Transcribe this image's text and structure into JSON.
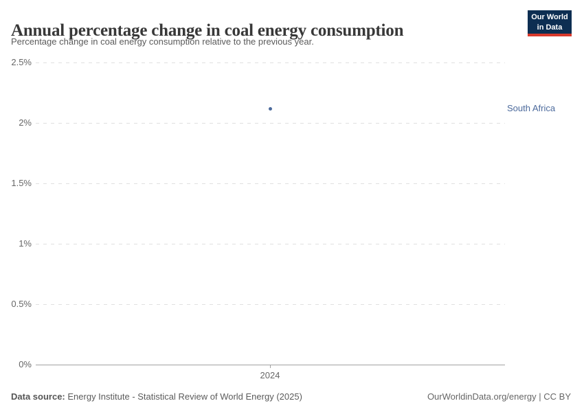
{
  "header": {
    "title": "Annual percentage change in coal energy consumption",
    "subtitle": "Percentage change in coal energy consumption relative to the previous year.",
    "logo": {
      "line1": "Our World",
      "line2": "in Data",
      "bg_color": "#0d2e52",
      "stripe_color": "#d8392c"
    }
  },
  "chart_data": {
    "type": "scatter",
    "title": "Annual percentage change in coal energy consumption",
    "subtitle": "Percentage change in coal energy consumption relative to the previous year.",
    "xlabel": "",
    "ylabel": "",
    "ylim": [
      0,
      2.5
    ],
    "grid": true,
    "legend_position": "right-of-point",
    "y_ticks": [
      0,
      0.5,
      1,
      1.5,
      2,
      2.5
    ],
    "y_tick_labels": [
      "0%",
      "0.5%",
      "1%",
      "1.5%",
      "2%",
      "2.5%"
    ],
    "x_ticks": [
      2024
    ],
    "x_tick_labels": [
      "2024"
    ],
    "series": [
      {
        "name": "South Africa",
        "color": "#4c6a9c",
        "points": [
          {
            "x": 2024,
            "y": 2.12
          }
        ]
      }
    ],
    "colors": {
      "gridline": "#e0e0e0",
      "axis": "#a0a0a0",
      "tick_label": "#666666"
    }
  },
  "footer": {
    "source_label": "Data source:",
    "source_text": "Energy Institute - Statistical Review of World Energy (2025)",
    "credit": "OurWorldinData.org/energy | CC BY"
  }
}
